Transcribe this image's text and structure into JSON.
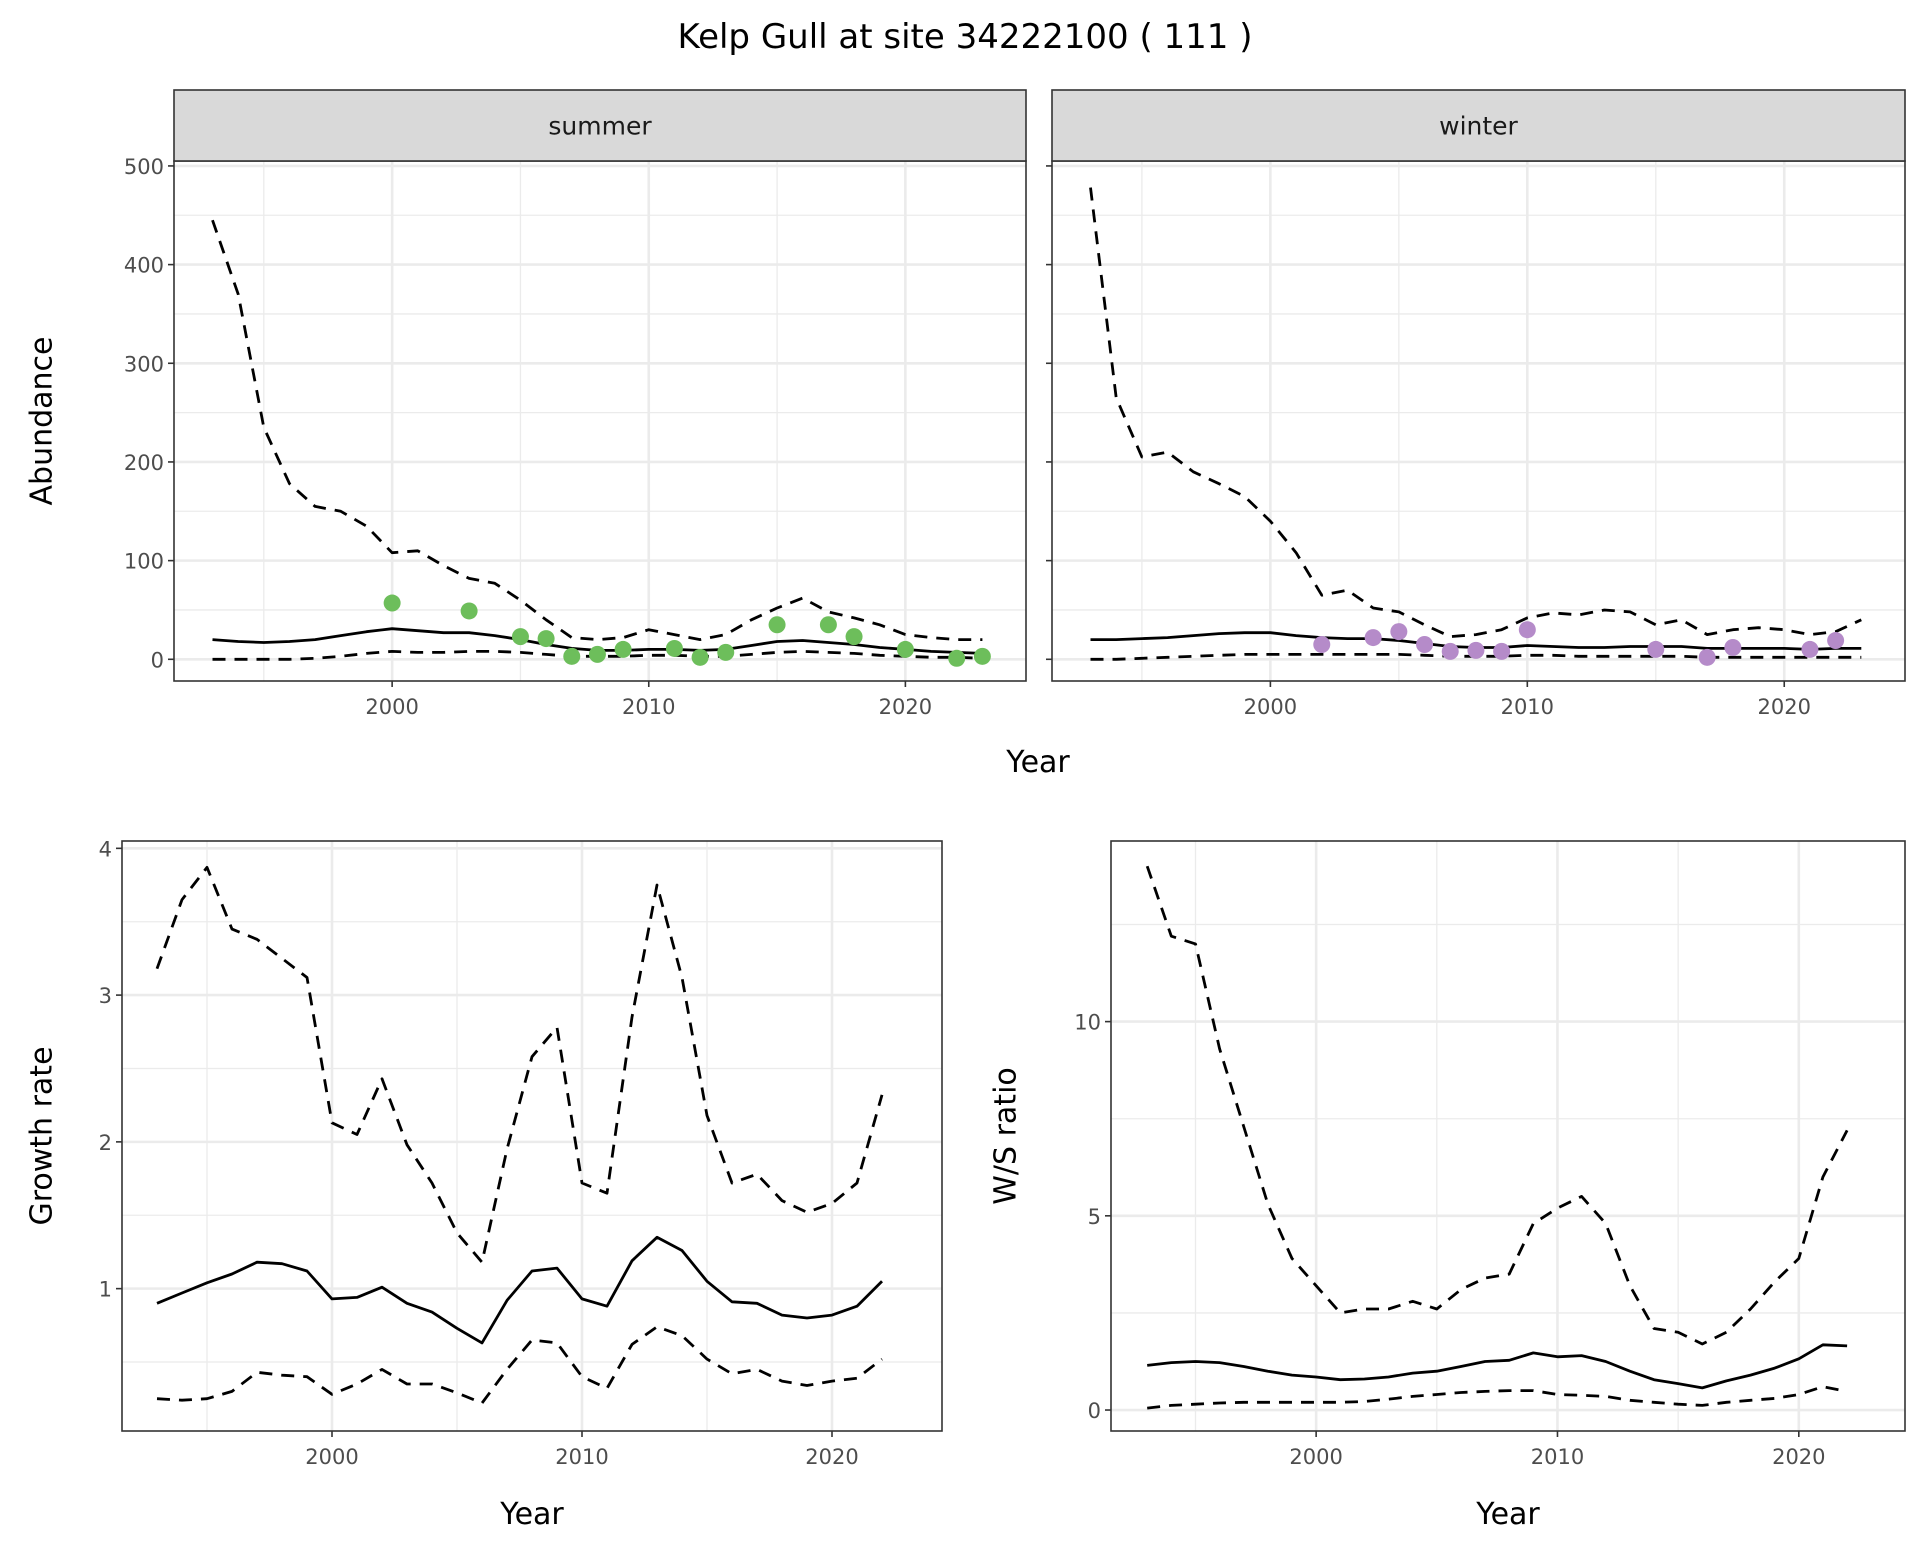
{
  "title": "Kelp Gull at site 34222100 ( 111 )",
  "colors": {
    "summer_points": "#6DBE5B",
    "winter_points": "#B58BC9",
    "lines": "#000000",
    "strip_fill": "#D9D9D9",
    "grid": "#EBEBEB"
  },
  "chart_data": [
    {
      "type": "line",
      "facet": "summer",
      "xlabel": "Year",
      "ylabel": "Abundance",
      "xlim": [
        1991.5,
        2024.7
      ],
      "ylim": [
        -22,
        505
      ],
      "xticks": [
        2000,
        2010,
        2020
      ],
      "xtick_labels": [
        "2000",
        "2010",
        "2020"
      ],
      "yticks": [
        0,
        100,
        200,
        300,
        400,
        500
      ],
      "ytick_labels": [
        "0",
        "100",
        "200",
        "300",
        "400",
        "500"
      ],
      "grid": true,
      "x": [
        1993,
        1994,
        1995,
        1996,
        1997,
        1998,
        1999,
        2000,
        2001,
        2002,
        2003,
        2004,
        2005,
        2006,
        2007,
        2008,
        2009,
        2010,
        2011,
        2012,
        2013,
        2014,
        2015,
        2016,
        2017,
        2018,
        2019,
        2020,
        2021,
        2022,
        2023
      ],
      "series": [
        {
          "style": "solid",
          "values": [
            20,
            18,
            17,
            18,
            20,
            24,
            28,
            31,
            29,
            27,
            27,
            24,
            20,
            15,
            11,
            9,
            9,
            10,
            10,
            9,
            10,
            14,
            18,
            19,
            17,
            15,
            12,
            10,
            8,
            7,
            6
          ]
        },
        {
          "style": "dashed",
          "values": [
            445,
            370,
            235,
            178,
            155,
            150,
            135,
            108,
            110,
            95,
            82,
            77,
            60,
            40,
            22,
            20,
            22,
            30,
            25,
            20,
            25,
            40,
            52,
            62,
            48,
            42,
            35,
            25,
            22,
            20,
            20
          ]
        },
        {
          "style": "dashed",
          "values": [
            0,
            0,
            0,
            0,
            1,
            3,
            6,
            8,
            7,
            7,
            8,
            8,
            7,
            5,
            3,
            3,
            3,
            4,
            4,
            3,
            3,
            5,
            7,
            8,
            7,
            6,
            4,
            3,
            2,
            2,
            1
          ]
        }
      ],
      "points": {
        "x": [
          2000,
          2003,
          2005,
          2006,
          2007,
          2008,
          2009,
          2011,
          2012,
          2013,
          2015,
          2017,
          2018,
          2020,
          2022,
          2023
        ],
        "y": [
          57,
          49,
          23,
          21,
          3,
          5,
          10,
          11,
          2,
          7,
          35,
          35,
          23,
          10,
          1,
          3
        ]
      }
    },
    {
      "type": "line",
      "facet": "winter",
      "xlim": [
        1991.5,
        2024.7
      ],
      "ylim": [
        -22,
        505
      ],
      "xticks": [
        2000,
        2010,
        2020
      ],
      "xtick_labels": [
        "2000",
        "2010",
        "2020"
      ],
      "yticks": [
        0,
        100,
        200,
        300,
        400,
        500
      ],
      "grid": true,
      "x": [
        1993,
        1994,
        1995,
        1996,
        1997,
        1998,
        1999,
        2000,
        2001,
        2002,
        2003,
        2004,
        2005,
        2006,
        2007,
        2008,
        2009,
        2010,
        2011,
        2012,
        2013,
        2014,
        2015,
        2016,
        2017,
        2018,
        2019,
        2020,
        2021,
        2022,
        2023
      ],
      "series": [
        {
          "style": "solid",
          "values": [
            20,
            20,
            21,
            22,
            24,
            26,
            27,
            27,
            24,
            22,
            21,
            21,
            19,
            16,
            13,
            12,
            12,
            14,
            13,
            12,
            12,
            13,
            13,
            13,
            11,
            11,
            11,
            11,
            10,
            11,
            11
          ]
        },
        {
          "style": "dashed",
          "values": [
            478,
            265,
            205,
            210,
            190,
            178,
            165,
            140,
            108,
            65,
            70,
            52,
            48,
            35,
            23,
            25,
            30,
            42,
            47,
            45,
            50,
            48,
            35,
            40,
            25,
            30,
            32,
            30,
            25,
            28,
            40
          ]
        },
        {
          "style": "dashed",
          "values": [
            0,
            0,
            1,
            2,
            3,
            4,
            5,
            5,
            5,
            5,
            5,
            5,
            5,
            4,
            3,
            3,
            3,
            4,
            4,
            3,
            3,
            3,
            3,
            3,
            2,
            2,
            2,
            2,
            2,
            2,
            2
          ]
        }
      ],
      "points": {
        "x": [
          2002,
          2004,
          2005,
          2006,
          2007,
          2008,
          2009,
          2010,
          2015,
          2017,
          2018,
          2021,
          2022
        ],
        "y": [
          15,
          22,
          28,
          15,
          8,
          9,
          8,
          30,
          10,
          2,
          12,
          10,
          19
        ]
      }
    },
    {
      "type": "line",
      "xlabel": "Year",
      "ylabel": "Growth rate",
      "xlim": [
        1991.6,
        2024.4
      ],
      "ylim": [
        0.03,
        4.05
      ],
      "xticks": [
        2000,
        2010,
        2020
      ],
      "xtick_labels": [
        "2000",
        "2010",
        "2020"
      ],
      "yticks": [
        1,
        2,
        3,
        4
      ],
      "ytick_labels": [
        "1",
        "2",
        "3",
        "4"
      ],
      "grid": true,
      "x": [
        1993,
        1994,
        1995,
        1996,
        1997,
        1998,
        1999,
        2000,
        2001,
        2002,
        2003,
        2004,
        2005,
        2006,
        2007,
        2008,
        2009,
        2010,
        2011,
        2012,
        2013,
        2014,
        2015,
        2016,
        2017,
        2018,
        2019,
        2020,
        2021,
        2022
      ],
      "series": [
        {
          "style": "solid",
          "values": [
            0.9,
            0.97,
            1.04,
            1.1,
            1.18,
            1.17,
            1.12,
            0.93,
            0.94,
            1.01,
            0.9,
            0.84,
            0.73,
            0.63,
            0.92,
            1.12,
            1.14,
            0.93,
            0.88,
            1.19,
            1.35,
            1.26,
            1.05,
            0.91,
            0.9,
            0.82,
            0.8,
            0.82,
            0.88,
            1.05
          ]
        },
        {
          "style": "dashed",
          "values": [
            3.18,
            3.65,
            3.87,
            3.45,
            3.38,
            3.25,
            3.12,
            2.13,
            2.05,
            2.43,
            1.98,
            1.72,
            1.38,
            1.18,
            1.95,
            2.58,
            2.78,
            1.72,
            1.65,
            2.85,
            3.75,
            3.12,
            2.18,
            1.72,
            1.78,
            1.6,
            1.52,
            1.58,
            1.72,
            2.32
          ]
        },
        {
          "style": "dashed",
          "values": [
            0.25,
            0.24,
            0.25,
            0.3,
            0.43,
            0.41,
            0.4,
            0.28,
            0.35,
            0.45,
            0.35,
            0.35,
            0.29,
            0.22,
            0.45,
            0.65,
            0.63,
            0.4,
            0.32,
            0.62,
            0.74,
            0.68,
            0.52,
            0.42,
            0.45,
            0.37,
            0.34,
            0.37,
            0.39,
            0.52
          ]
        }
      ]
    },
    {
      "type": "line",
      "xlabel": "Year",
      "ylabel": "W/S ratio",
      "xlim": [
        1991.5,
        2024.4
      ],
      "ylim": [
        -0.54,
        14.65
      ],
      "xticks": [
        2000,
        2010,
        2020
      ],
      "xtick_labels": [
        "2000",
        "2010",
        "2020"
      ],
      "yticks": [
        0,
        5,
        10
      ],
      "ytick_labels": [
        "0",
        "5",
        "10"
      ],
      "grid": true,
      "x": [
        1993,
        1994,
        1995,
        1996,
        1997,
        1998,
        1999,
        2000,
        2001,
        2002,
        2003,
        2004,
        2005,
        2006,
        2007,
        2008,
        2009,
        2010,
        2011,
        2012,
        2013,
        2014,
        2015,
        2016,
        2017,
        2018,
        2019,
        2020,
        2021,
        2022
      ],
      "series": [
        {
          "style": "solid",
          "values": [
            1.15,
            1.22,
            1.25,
            1.22,
            1.12,
            1.0,
            0.9,
            0.85,
            0.78,
            0.8,
            0.85,
            0.95,
            1.0,
            1.12,
            1.25,
            1.28,
            1.47,
            1.37,
            1.4,
            1.25,
            1.0,
            0.78,
            0.68,
            0.57,
            0.75,
            0.9,
            1.08,
            1.32,
            1.68,
            1.65
          ]
        },
        {
          "style": "dashed",
          "values": [
            14,
            12.2,
            12,
            9.3,
            7.3,
            5.3,
            3.9,
            3.2,
            2.5,
            2.6,
            2.6,
            2.8,
            2.6,
            3.1,
            3.4,
            3.5,
            4.8,
            5.2,
            5.5,
            4.8,
            3.2,
            2.1,
            2.0,
            1.7,
            2.0,
            2.6,
            3.3,
            3.9,
            6.0,
            7.2
          ]
        },
        {
          "style": "dashed",
          "values": [
            0.05,
            0.12,
            0.15,
            0.18,
            0.2,
            0.2,
            0.2,
            0.2,
            0.2,
            0.22,
            0.28,
            0.35,
            0.4,
            0.45,
            0.48,
            0.5,
            0.5,
            0.4,
            0.38,
            0.35,
            0.25,
            0.2,
            0.15,
            0.12,
            0.2,
            0.25,
            0.3,
            0.4,
            0.6,
            0.48
          ]
        }
      ]
    }
  ]
}
